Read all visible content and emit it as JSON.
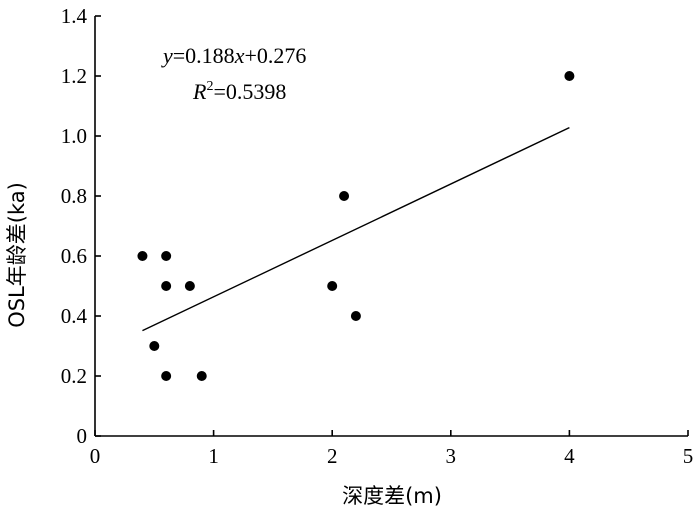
{
  "chart_data": {
    "type": "scatter",
    "xlabel": "深度差(m)",
    "ylabel": "OSL年龄差(ka)",
    "xlim": [
      0,
      5
    ],
    "ylim": [
      0,
      1.4
    ],
    "x_ticks": [
      "0",
      "1",
      "2",
      "3",
      "4",
      "5"
    ],
    "y_ticks": [
      "0",
      "0.2",
      "0.4",
      "0.6",
      "0.8",
      "1.0",
      "1.2",
      "1.4"
    ],
    "grid": false,
    "series": [
      {
        "points": [
          {
            "x": 0.4,
            "y": 0.6
          },
          {
            "x": 0.5,
            "y": 0.3
          },
          {
            "x": 0.6,
            "y": 0.6
          },
          {
            "x": 0.6,
            "y": 0.5
          },
          {
            "x": 0.6,
            "y": 0.2
          },
          {
            "x": 0.8,
            "y": 0.5
          },
          {
            "x": 0.9,
            "y": 0.2
          },
          {
            "x": 2.0,
            "y": 0.5
          },
          {
            "x": 2.1,
            "y": 0.8
          },
          {
            "x": 2.2,
            "y": 0.4
          },
          {
            "x": 4.0,
            "y": 1.2
          }
        ]
      }
    ],
    "trendline": {
      "slope": 0.188,
      "intercept": 0.276,
      "x_range": [
        0.4,
        4.0
      ],
      "equation": {
        "y_var": "y",
        "eq": "=0.188",
        "x_var": "x",
        "tail": "+0.276"
      },
      "r2": {
        "r": "R",
        "sup": "2",
        "val": "=0.5398"
      }
    }
  }
}
